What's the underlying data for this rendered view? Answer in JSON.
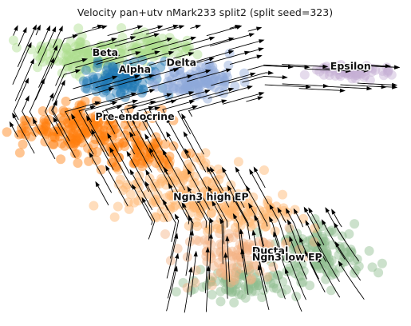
{
  "chart_data": {
    "type": "scatter",
    "title": "Velocity pan+utv nMark233 split2 (split seed=323)",
    "xlabel": "",
    "ylabel": "",
    "grid": false,
    "axes_visible": false,
    "legend": "on data",
    "overlay": "velocity streamlines",
    "clusters": [
      {
        "name": "Ductal",
        "color": "#8fbc8f",
        "x": 6.2,
        "y": 1.6
      },
      {
        "name": "Ngn3 low EP",
        "color": "#f4b183",
        "x": 6.6,
        "y": 1.4
      },
      {
        "name": "Ngn3 high EP",
        "color": "#ffb36b",
        "x": 4.8,
        "y": 3.2
      },
      {
        "name": "Pre-endocrine",
        "color": "#ff7f0e",
        "x": 3.0,
        "y": 5.6
      },
      {
        "name": "Beta",
        "color": "#aedd8e",
        "x": 2.3,
        "y": 7.5
      },
      {
        "name": "Alpha",
        "color": "#1f77b4",
        "x": 3.0,
        "y": 7.0
      },
      {
        "name": "Delta",
        "color": "#8fa9d9",
        "x": 4.1,
        "y": 7.2
      },
      {
        "name": "Epsilon",
        "color": "#c5b0d5",
        "x": 8.1,
        "y": 7.1
      }
    ]
  }
}
